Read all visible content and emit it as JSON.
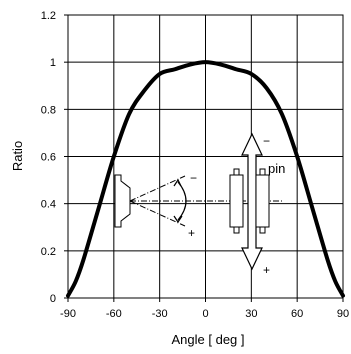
{
  "chart_data": {
    "type": "line",
    "title": "",
    "xlabel": "Angle [ deg ]",
    "ylabel": "Ratio",
    "xlim": [
      -90,
      90
    ],
    "ylim": [
      0,
      1.2
    ],
    "grid": true,
    "x_ticks": [
      -90,
      -60,
      -30,
      0,
      30,
      60,
      90
    ],
    "x_tick_labels": [
      "-90",
      "-60",
      "-30",
      "0",
      "30",
      "60",
      "90"
    ],
    "y_ticks": [
      0,
      0.2,
      0.4,
      0.6,
      0.8,
      1,
      1.2
    ],
    "y_tick_labels": [
      "0",
      "0.2",
      "0.4",
      "0.6",
      "0.8",
      "1",
      "1.2"
    ],
    "series": [
      {
        "color": "#000000",
        "x": [
          -90,
          -85,
          -80,
          -70,
          -60,
          -50,
          -40,
          -30,
          -20,
          -10,
          0,
          10,
          20,
          30,
          40,
          50,
          60,
          70,
          80,
          85,
          90
        ],
        "y": [
          0.01,
          0.07,
          0.16,
          0.38,
          0.6,
          0.78,
          0.88,
          0.95,
          0.97,
          0.99,
          1.0,
          0.99,
          0.97,
          0.95,
          0.89,
          0.78,
          0.6,
          0.38,
          0.16,
          0.07,
          0.01
        ]
      }
    ],
    "annotations": {
      "rotation_minus": "−",
      "rotation_plus": "+",
      "slide_minus": "−",
      "slide_plus": "+",
      "pin_label": "pin"
    }
  }
}
